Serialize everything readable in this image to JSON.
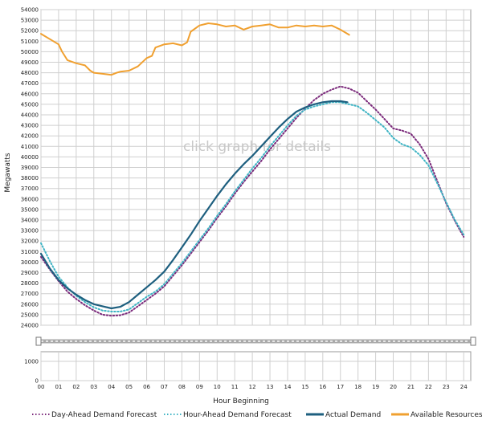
{
  "chart_data": {
    "type": "line",
    "ylabel": "Megawatts",
    "xlabel": "Hour Beginning",
    "watermark": "click graph for details",
    "ylim": [
      24000,
      54000
    ],
    "y_ticks": [
      24000,
      25000,
      26000,
      27000,
      28000,
      29000,
      30000,
      31000,
      32000,
      33000,
      34000,
      35000,
      36000,
      37000,
      38000,
      39000,
      40000,
      41000,
      42000,
      43000,
      44000,
      45000,
      46000,
      47000,
      48000,
      49000,
      50000,
      51000,
      52000,
      53000,
      54000
    ],
    "xlim": [
      0,
      24.4
    ],
    "x_ticks": [
      "00",
      "01",
      "02",
      "03",
      "04",
      "05",
      "06",
      "07",
      "08",
      "09",
      "10",
      "11",
      "12",
      "13",
      "14",
      "15",
      "16",
      "17",
      "18",
      "19",
      "20",
      "21",
      "22",
      "23",
      "24"
    ],
    "grid": true,
    "legend_position": "bottom",
    "lower_panel": {
      "y_ticks": [
        0,
        1000
      ]
    },
    "series": [
      {
        "name": "Day-Ahead Demand Forecast",
        "color": "#7b2a7b",
        "style": "dotted",
        "x": [
          0,
          0.5,
          1,
          1.5,
          2,
          2.5,
          3,
          3.5,
          4,
          4.5,
          5,
          5.5,
          6,
          6.5,
          7,
          7.5,
          8,
          8.5,
          9,
          9.5,
          10,
          10.5,
          11,
          11.5,
          12,
          12.5,
          13,
          13.5,
          14,
          14.5,
          15,
          15.5,
          16,
          16.5,
          17,
          17.5,
          18,
          18.5,
          19,
          19.5,
          20,
          20.5,
          21,
          21.5,
          22,
          22.5,
          23,
          23.5,
          24
        ],
        "values": [
          30500,
          29300,
          28200,
          27200,
          26500,
          25900,
          25400,
          25000,
          24900,
          24950,
          25200,
          25800,
          26400,
          27000,
          27700,
          28700,
          29700,
          30800,
          31900,
          33000,
          34200,
          35300,
          36500,
          37600,
          38600,
          39600,
          40700,
          41700,
          42700,
          43700,
          44600,
          45400,
          46000,
          46400,
          46700,
          46500,
          46100,
          45300,
          44500,
          43600,
          42700,
          42500,
          42200,
          41200,
          39800,
          37700,
          35600,
          33900,
          32400
        ]
      },
      {
        "name": "Hour-Ahead Demand Forecast",
        "color": "#3fb4c4",
        "style": "dotted",
        "x": [
          0,
          0.5,
          1,
          1.5,
          2,
          2.5,
          3,
          3.5,
          4,
          4.5,
          5,
          5.5,
          6,
          6.5,
          7,
          7.5,
          8,
          8.5,
          9,
          9.5,
          10,
          10.5,
          11,
          11.5,
          12,
          12.5,
          13,
          13.5,
          14,
          14.5,
          15,
          15.5,
          16,
          16.5,
          17,
          17.5,
          18,
          18.5,
          19,
          19.5,
          20,
          20.5,
          21,
          21.5,
          22,
          22.5,
          23,
          23.5,
          24
        ],
        "values": [
          31800,
          30100,
          28600,
          27600,
          26800,
          26200,
          25700,
          25400,
          25300,
          25300,
          25500,
          26100,
          26700,
          27200,
          27900,
          28900,
          29900,
          31000,
          32100,
          33200,
          34400,
          35500,
          36700,
          37800,
          38900,
          39900,
          41000,
          42000,
          43000,
          43900,
          44500,
          44800,
          45000,
          45200,
          45200,
          45000,
          44800,
          44200,
          43500,
          42800,
          41800,
          41200,
          40900,
          40200,
          39200,
          37500,
          35700,
          34000,
          32600
        ]
      },
      {
        "name": "Actual Demand",
        "color": "#1e5f7f",
        "style": "solid",
        "x": [
          0,
          0.5,
          1,
          1.5,
          2,
          2.5,
          3,
          3.5,
          4,
          4.5,
          5,
          5.5,
          6,
          6.5,
          7,
          7.5,
          8,
          8.5,
          9,
          9.5,
          10,
          10.5,
          11,
          11.5,
          12,
          12.5,
          13,
          13.5,
          14,
          14.5,
          15,
          15.5,
          16,
          16.5,
          17,
          17.4
        ],
        "values": [
          30800,
          29400,
          28300,
          27500,
          26900,
          26400,
          26000,
          25800,
          25600,
          25750,
          26200,
          26900,
          27600,
          28300,
          29100,
          30200,
          31400,
          32600,
          33900,
          35100,
          36300,
          37400,
          38400,
          39300,
          40100,
          41000,
          41900,
          42800,
          43600,
          44300,
          44700,
          45000,
          45200,
          45300,
          45300,
          45200
        ]
      },
      {
        "name": "Available Resources",
        "color": "#f0a030",
        "style": "solid",
        "x": [
          0,
          0.5,
          1,
          1.2,
          1.5,
          2,
          2.5,
          2.8,
          3,
          3.5,
          4,
          4.3,
          4.5,
          5,
          5.5,
          6,
          6.3,
          6.5,
          7,
          7.5,
          8,
          8.3,
          8.5,
          9,
          9.5,
          10,
          10.5,
          11,
          11.5,
          12,
          12.5,
          13,
          13.5,
          14,
          14.5,
          15,
          15.5,
          16,
          16.5,
          17,
          17.5
        ],
        "values": [
          51700,
          51200,
          50700,
          50000,
          49200,
          48900,
          48700,
          48200,
          48000,
          47900,
          47800,
          48000,
          48100,
          48200,
          48600,
          49400,
          49600,
          50400,
          50700,
          50800,
          50600,
          50900,
          51900,
          52500,
          52700,
          52600,
          52400,
          52500,
          52100,
          52400,
          52500,
          52600,
          52300,
          52300,
          52500,
          52400,
          52500,
          52400,
          52500,
          52100,
          51600
        ]
      }
    ]
  }
}
